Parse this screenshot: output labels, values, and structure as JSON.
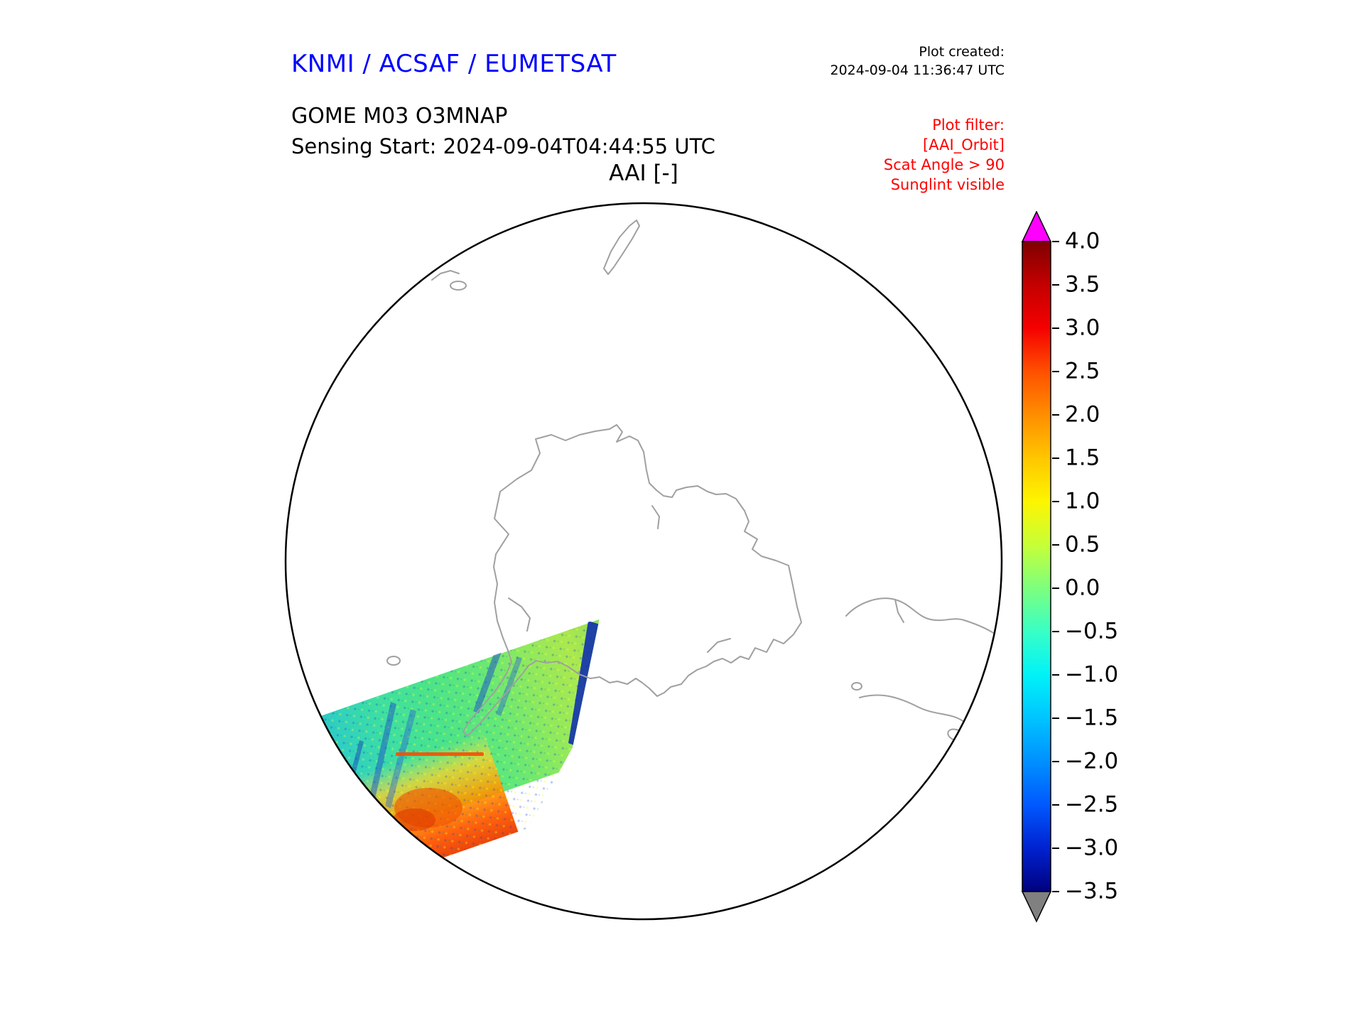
{
  "header": {
    "agency_title": "KNMI / ACSAF / EUMETSAT",
    "plot_created_label": "Plot created:",
    "plot_created_timestamp": "2024-09-04 11:36:47 UTC",
    "product_title": "GOME M03 O3MNAP",
    "sensing_start": "Sensing Start: 2024-09-04T04:44:55 UTC",
    "plot_title": "AAI [-]"
  },
  "plot_filter": {
    "heading": "Plot filter:",
    "lines": [
      "[AAI_Orbit]",
      "Scat Angle > 90",
      "Sunglint visible"
    ]
  },
  "colorbar": {
    "tick_labels": [
      "4.0",
      "3.5",
      "3.0",
      "2.5",
      "2.0",
      "1.5",
      "1.0",
      "0.5",
      "0.0",
      "−0.5",
      "−1.0",
      "−1.5",
      "−2.0",
      "−2.5",
      "−3.0",
      "−3.5"
    ],
    "max": 4.0,
    "min": -3.5,
    "step": 0.5,
    "over_color": "#ff00ff",
    "under_color": "#808080"
  },
  "colors": {
    "agency_title_text": "#0000ff",
    "filter_text": "#ff0000",
    "coastline": "#a0a0a0",
    "globe_outline": "#000000"
  },
  "chart_data": {
    "type": "heatmap",
    "title": "AAI [-]",
    "projection": "South polar view (orthographic), Antarctica centered",
    "colorbar": {
      "label": "AAI [-]",
      "min": -3.5,
      "max": 4.0,
      "tick_step": 0.5,
      "tick_labels": [
        "4.0",
        "3.5",
        "3.0",
        "2.5",
        "2.0",
        "1.5",
        "1.0",
        "0.5",
        "0.0",
        "−0.5",
        "−1.0",
        "−1.5",
        "−2.0",
        "−2.5",
        "−3.0",
        "−3.5"
      ],
      "colormap": "jet-like: dark red (4.0) → red → orange → yellow (1.0) → green (0.0) → cyan (−1.0) → blue (−2.0) → navy (−3.5)",
      "over_color": "#ff00ff",
      "under_color": "#808080"
    },
    "swath": {
      "description": "Single GOME-2 (Metop) orbit swath crossing the lower-left quadrant of the globe, running from the south-west limb up toward the Antarctic Peninsula",
      "approx_value_range": [
        -3.0,
        2.5
      ],
      "dominant_values": "mostly 0.0 to −1.0 (green/cyan); patches near +1.0 (yellow); +1.5 to +2.5 (orange/red) at the south-west end near the limb; streaks of −2.0 to −3.0 (dark blue) at the swath's eastern edge and interior"
    },
    "grid": false,
    "legend_position": "right colorbar with over/under extend arrows"
  }
}
